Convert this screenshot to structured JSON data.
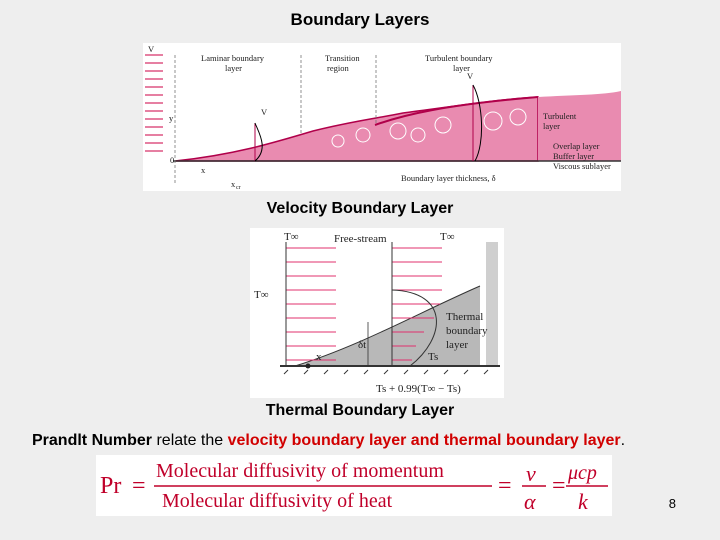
{
  "title": "Boundary Layers",
  "velocity_figure": {
    "caption": "Velocity Boundary Layer",
    "labels": {
      "v_axis": "V",
      "v_profile1": "V",
      "v_profile2": "V",
      "y_axis": "y",
      "x_axis": "x",
      "origin": "0",
      "laminar": "Laminar boundary",
      "laminar2": "layer",
      "transition": "Transition",
      "transition2": "region",
      "turbulent": "Turbulent boundary",
      "turbulent2": "layer",
      "turb_layer": "Turbulent",
      "turb_layer2": "layer",
      "overlap": "Overlap layer",
      "buffer": "Buffer layer",
      "viscous": "Viscous sublayer",
      "thickness": "Boundary layer thickness, δ",
      "xcr": "x",
      "xcr_sub": "cr"
    }
  },
  "thermal_figure": {
    "caption": "Thermal Boundary Layer",
    "labels": {
      "t_inf_left": "T∞",
      "free_stream": "Free-stream",
      "t_inf_right": "T∞",
      "t_inf_axis": "T∞",
      "thermal": "Thermal",
      "boundary": "boundary",
      "layer": "layer",
      "delta_t": "δt",
      "x": "x",
      "ts": "Ts",
      "bottom": "Ts + 0.99(T∞ − Ts)"
    }
  },
  "prandtl": {
    "prefix": "Prandlt Number",
    "middle": " relate the ",
    "highlight": "velocity boundary layer and thermal boundary layer",
    "suffix": "."
  },
  "formula": {
    "pr": "Pr",
    "eq1": "=",
    "numerator": "Molecular diffusivity of momentum",
    "denominator": "Molecular diffusivity of heat",
    "eq2": "=",
    "nu": "ν",
    "alpha": "α",
    "eq3": "=",
    "mu_cp": "μcp",
    "k": "k"
  },
  "page_number": "8"
}
